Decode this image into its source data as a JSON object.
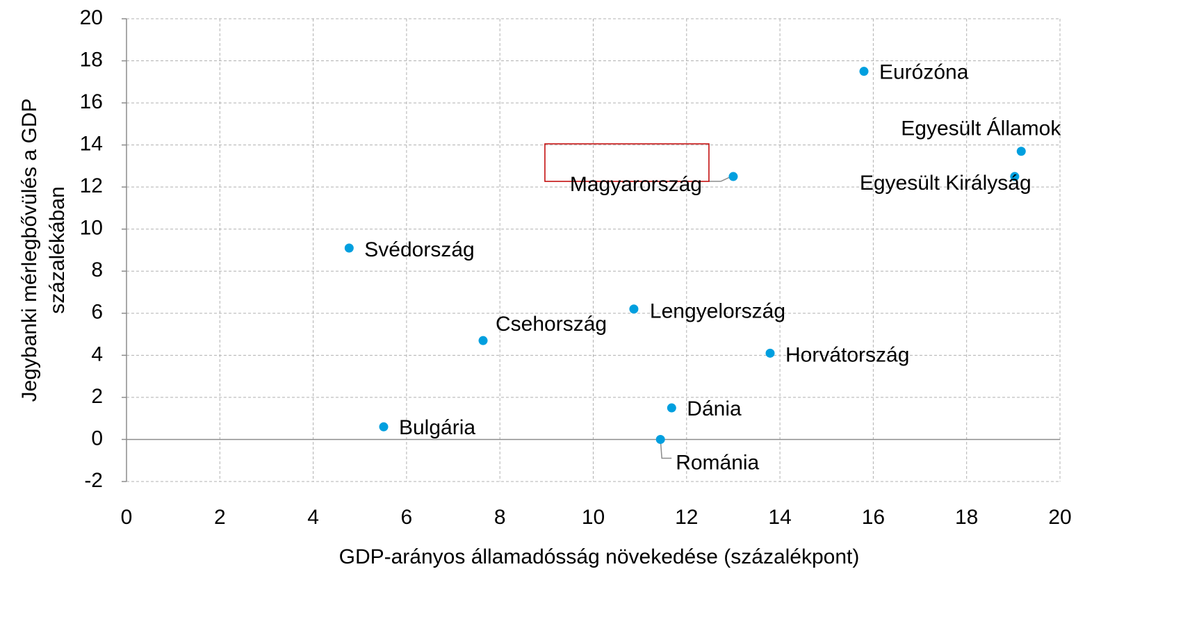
{
  "chart_data": {
    "type": "scatter",
    "xlabel": "GDP-arányos államadósság növekedése (százalékpont)",
    "ylabel": [
      "Jegybanki mérlegbővülés a GDP",
      "százalékában"
    ],
    "xlim": [
      0,
      20
    ],
    "xticks": [
      0,
      2,
      4,
      6,
      8,
      10,
      12,
      14,
      16,
      18,
      20
    ],
    "ylim": [
      -2,
      20
    ],
    "yticks": [
      -2,
      0,
      2,
      4,
      6,
      8,
      10,
      12,
      14,
      16,
      18,
      20
    ],
    "grid": true,
    "series": [
      {
        "color": "#009fdf",
        "labels": [
          "Eurózóna",
          "Egyesült Államok",
          "Egyesült Királyság",
          "Magyarország",
          "Svédország",
          "Csehország",
          "Lengyelország",
          "Horvátország",
          "Dánia",
          "Bulgária",
          "Románia"
        ],
        "x": [
          15.8,
          19.17,
          19.03,
          13.0,
          4.77,
          7.64,
          10.87,
          13.79,
          11.68,
          5.51,
          11.44
        ],
        "values": [
          17.5,
          13.7,
          12.5,
          12.5,
          9.1,
          4.7,
          6.2,
          4.1,
          1.5,
          0.6,
          0.0
        ]
      }
    ]
  }
}
